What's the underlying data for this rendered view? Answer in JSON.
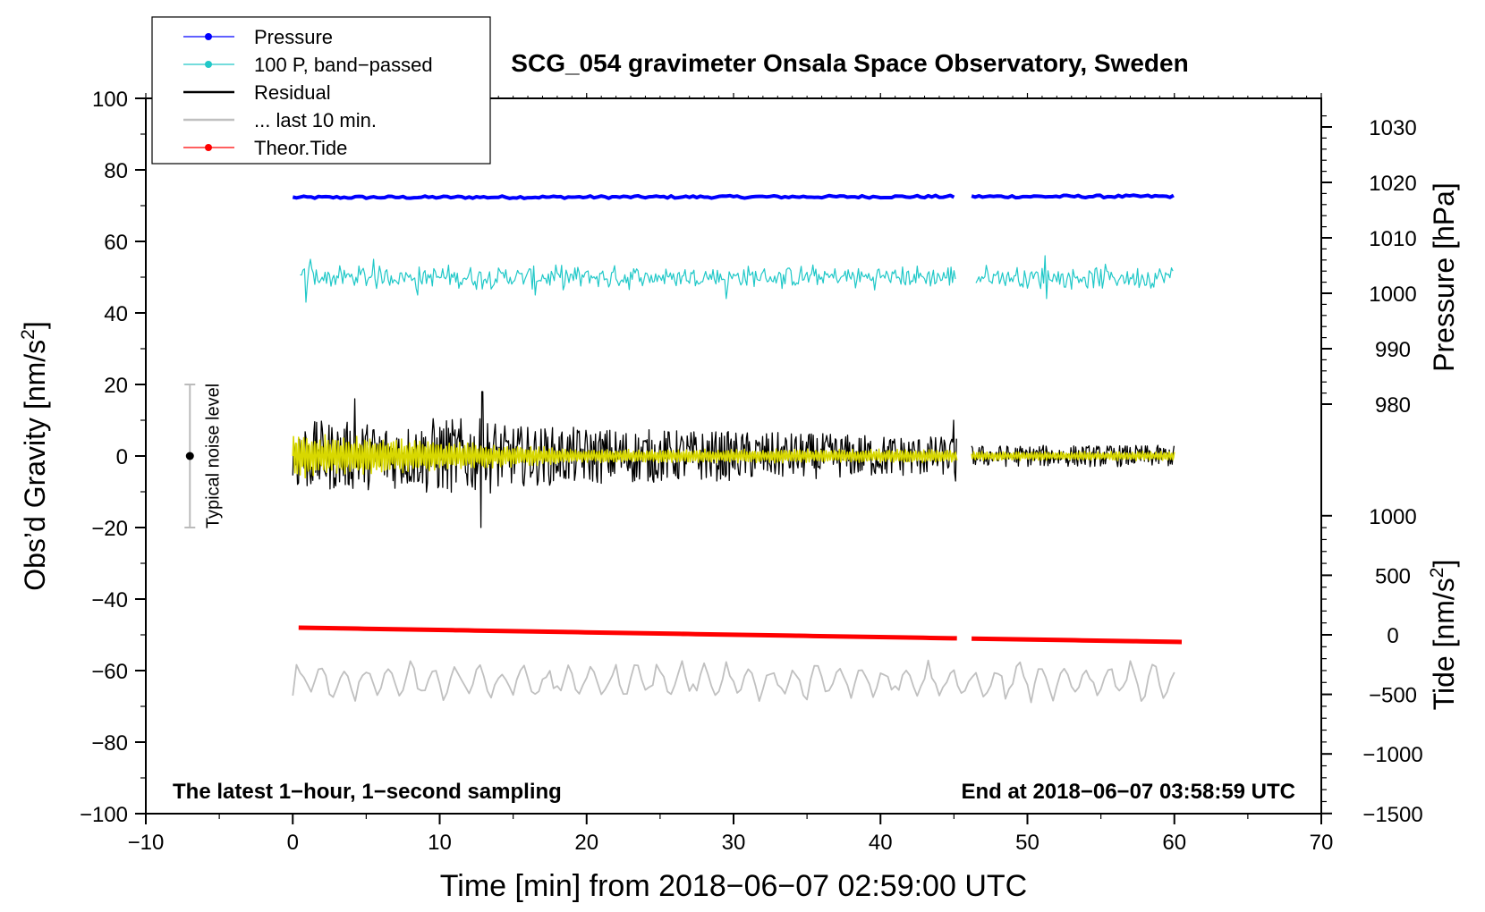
{
  "chart_data": {
    "type": "line",
    "title": "SCG_054 gravimeter Onsala Space Observatory, Sweden",
    "xlabel": "Time [min] from 2018−06−07 02:59:00 UTC",
    "ylabel_left": "Obs’d Gravity [nm/s",
    "ylabel_left_sup": "2",
    "ylabel_left_end": "]",
    "ylabel_right_pressure": "Pressure [hPa]",
    "ylabel_right_tide": "Tide [nm/s",
    "ylabel_right_tide_sup": "2",
    "ylabel_right_tide_end": "]",
    "xlim": [
      -10,
      70
    ],
    "ylim": [
      -100,
      100
    ],
    "x_ticks": [
      -10,
      0,
      10,
      20,
      30,
      40,
      50,
      60,
      70
    ],
    "x_tick_labels": [
      "−10",
      "0",
      "10",
      "20",
      "30",
      "40",
      "50",
      "60",
      "70"
    ],
    "y_ticks": [
      -100,
      -80,
      -60,
      -40,
      -20,
      0,
      20,
      40,
      60,
      80,
      100
    ],
    "y_tick_labels": [
      "−100",
      "−80",
      "−60",
      "−40",
      "−20",
      "0",
      "20",
      "40",
      "60",
      "80",
      "100"
    ],
    "pressure_axis": {
      "ticks": [
        980,
        990,
        1000,
        1010,
        1020,
        1030
      ],
      "tick_labels": [
        "980",
        "990",
        "1000",
        "1010",
        "1020",
        "1030"
      ],
      "gravity_at_980": 14.5,
      "gravity_per_hpa": 1.55
    },
    "tide_axis": {
      "ticks": [
        -1500,
        -1000,
        -500,
        0,
        500,
        1000
      ],
      "tick_labels": [
        "−1500",
        "−1000",
        "−500",
        "0",
        "500",
        "1000"
      ],
      "gravity_at_0": -50,
      "gravity_per_unit": 0.0333
    },
    "gap": [
      45.2,
      46.2
    ],
    "series": [
      {
        "name": "Pressure",
        "color": "#0000ff",
        "start": 72.3,
        "end": 72.6,
        "noise": 0.35,
        "x_end": 60.0
      },
      {
        "name": "100 P, band−passed",
        "color": "#20c8c8",
        "level": 50,
        "amplitude": 2.5,
        "spikes": [
          [
            0.9,
            -7
          ],
          [
            1.2,
            5
          ],
          [
            5.5,
            5
          ],
          [
            8.5,
            -5
          ],
          [
            16.5,
            -5
          ],
          [
            29.5,
            -6
          ],
          [
            51.2,
            6
          ],
          [
            51.3,
            -6
          ]
        ],
        "x_end": 60.0
      },
      {
        "name": "Residual",
        "color": "#000000",
        "level": 0,
        "amplitude_early": 10,
        "amplitude_late": 3,
        "spikes": [
          [
            12.9,
            18
          ],
          [
            12.8,
            -20
          ],
          [
            4.2,
            16
          ],
          [
            45.0,
            10
          ],
          [
            45.1,
            -7
          ]
        ],
        "x_end": 60.0
      },
      {
        "name": "... last 10 min.",
        "color": "#c0c0c0",
        "level": -63,
        "amplitude": 4.5,
        "x_end": 60.0
      },
      {
        "name": "Theor.Tide",
        "color": "#ff0000",
        "start": -48,
        "end": -52,
        "x_start": 0.4,
        "x_end": 60.5
      },
      {
        "name": "Residual (filtered)",
        "color": "#d8d800",
        "level": 0,
        "amplitude_early": 6,
        "amplitude_late": 1.2,
        "x_end": 60.0
      }
    ],
    "legend": {
      "placement": "top-left",
      "entries": [
        {
          "label": "Pressure",
          "color": "#0000ff",
          "marker": true
        },
        {
          "label": "100 P, band−passed",
          "color": "#20c8c8",
          "marker": true
        },
        {
          "label": "Residual",
          "color": "#000000",
          "marker": false
        },
        {
          "label": "... last 10 min.",
          "color": "#c0c0c0",
          "marker": false
        },
        {
          "label": "Theor.Tide",
          "color": "#ff0000",
          "marker": true
        }
      ]
    },
    "noise_indicator": {
      "label": "Typical noise level",
      "x": -7,
      "y": 0,
      "range": [
        -20,
        20
      ]
    },
    "annotations": {
      "bottom_left": "The latest 1−hour, 1−second sampling",
      "bottom_right": "End at 2018−06−07 03:58:59 UTC"
    }
  }
}
